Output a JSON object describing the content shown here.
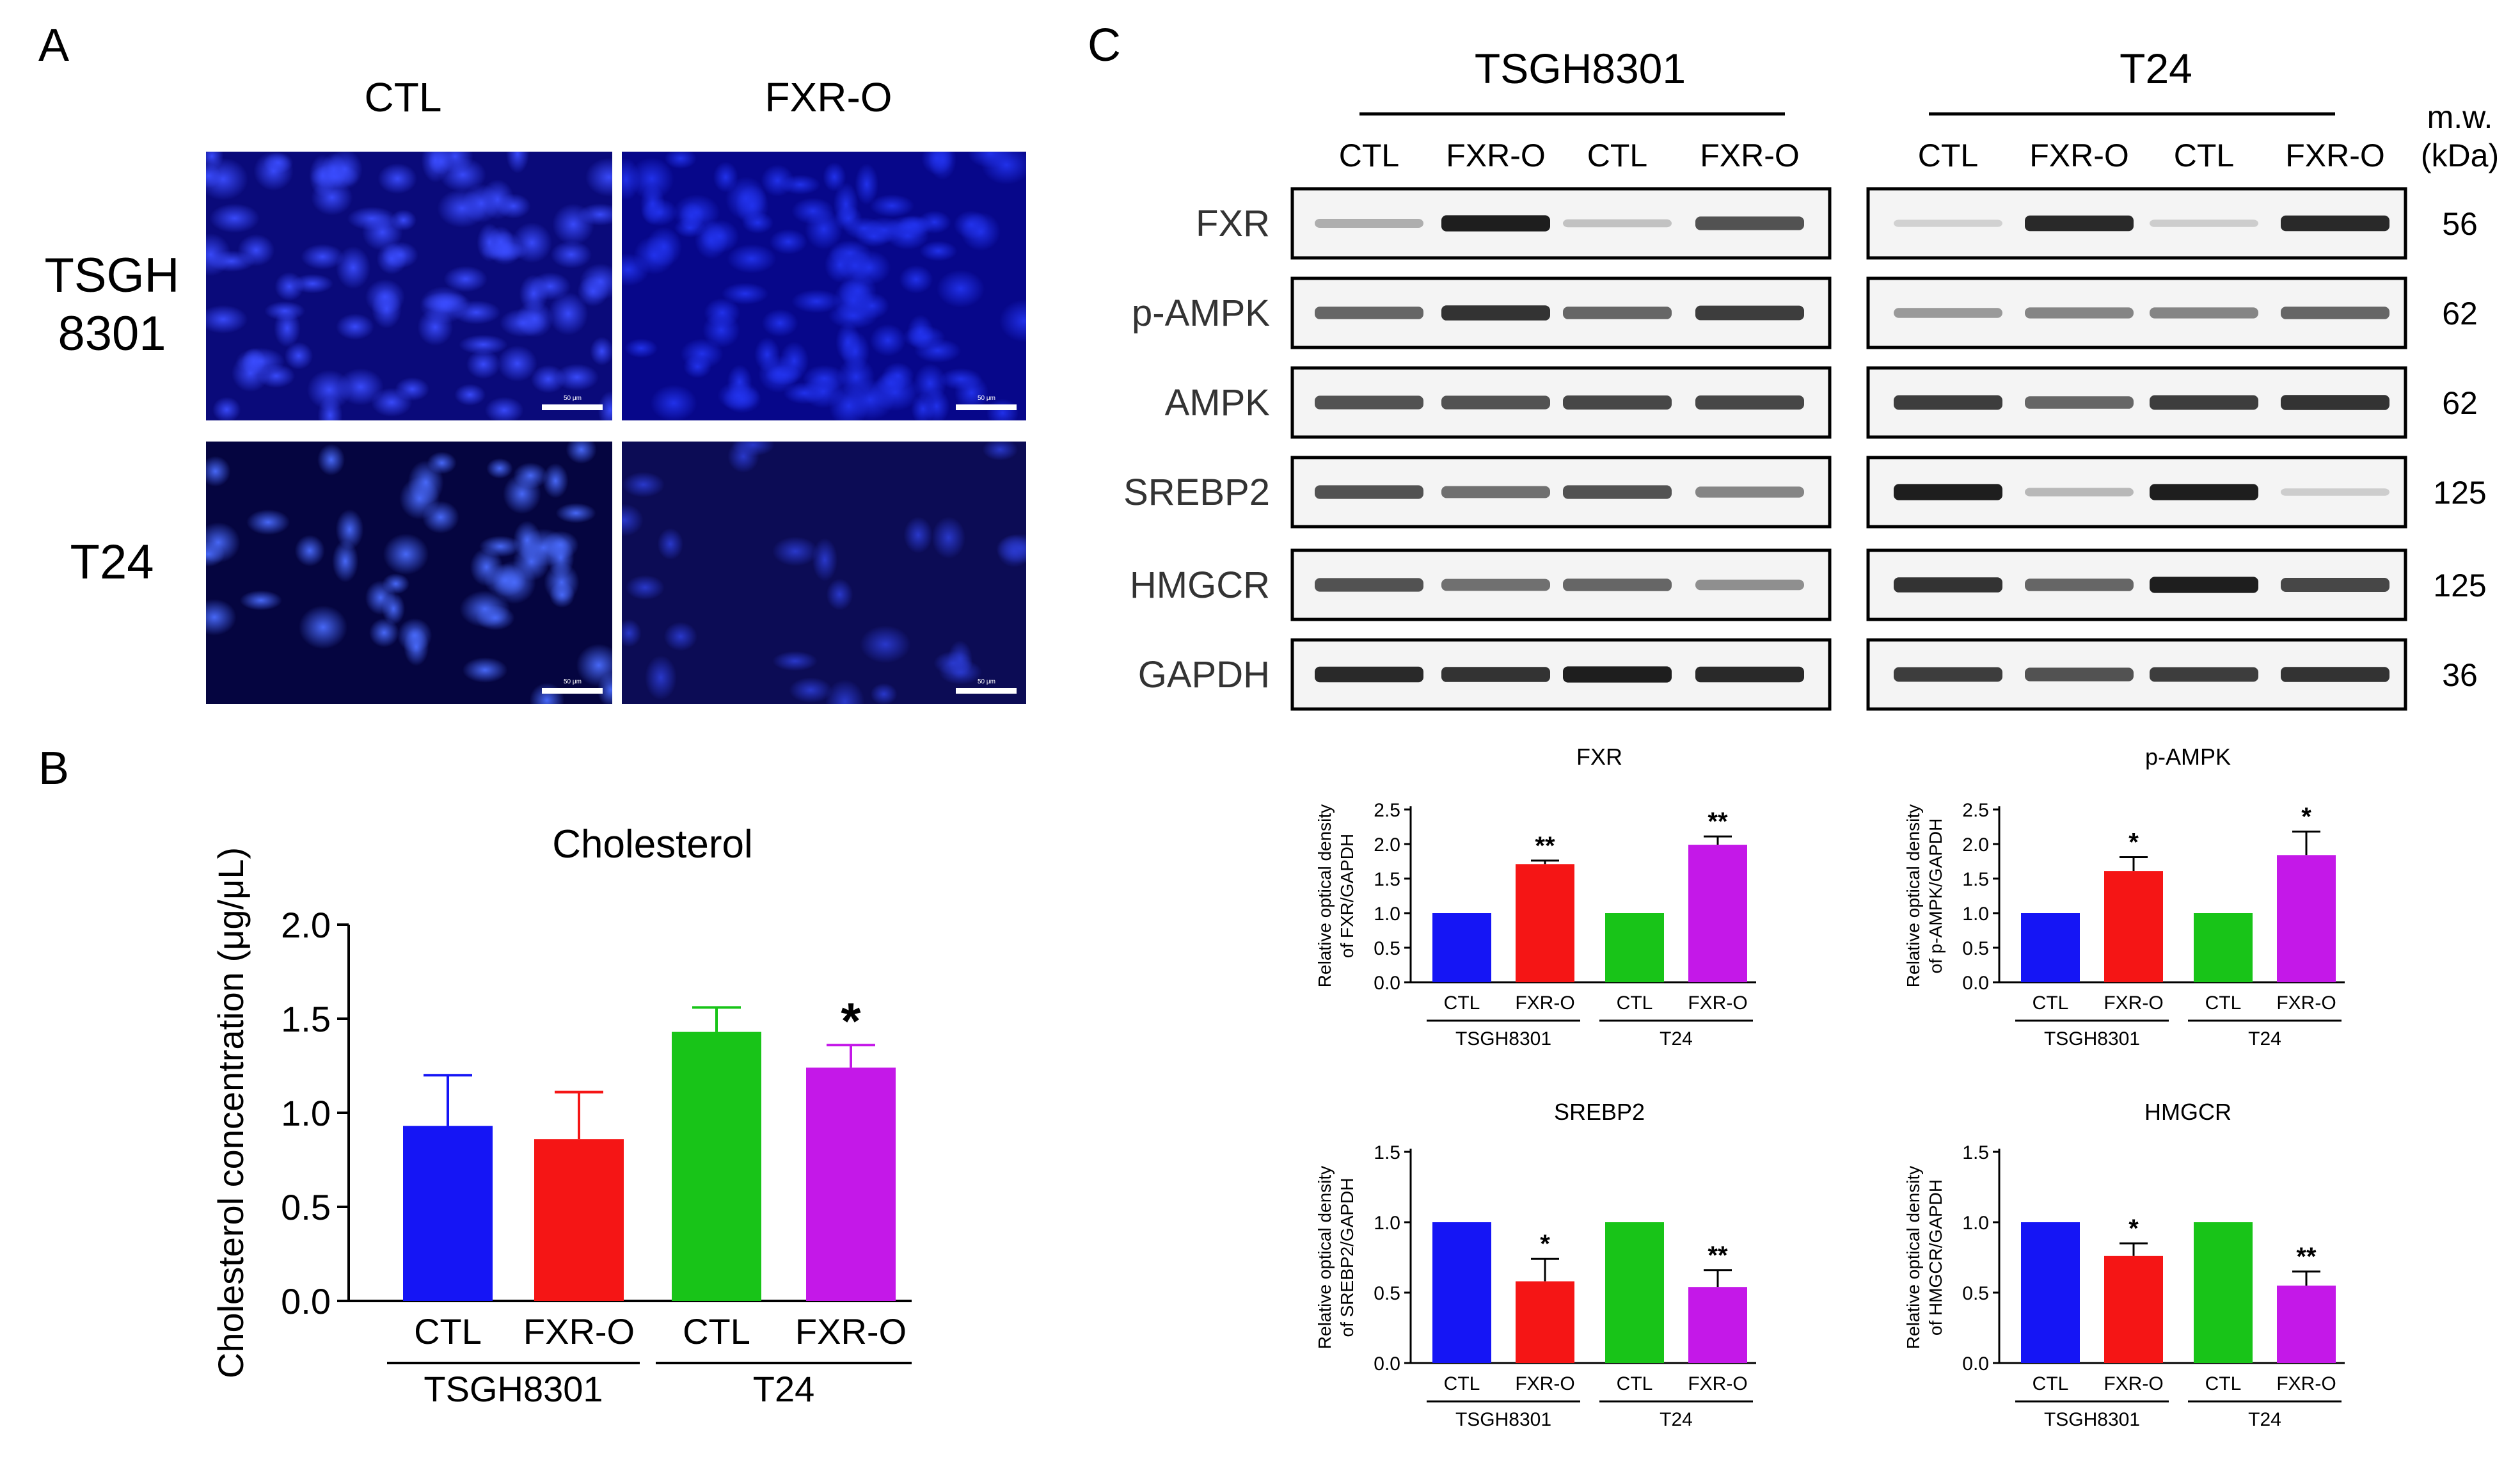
{
  "panels": {
    "A": "A",
    "B": "B",
    "C": "C"
  },
  "panelA": {
    "columns": [
      "CTL",
      "FXR-O"
    ],
    "rows": [
      "TSGH\n8301",
      "T24"
    ],
    "scalebar": "50 μm",
    "images": [
      {
        "row": 0,
        "col": 0,
        "base": "#0a0a7a",
        "glow": "#3a4cff",
        "seed": 11,
        "density": 80
      },
      {
        "row": 0,
        "col": 1,
        "base": "#07078a",
        "glow": "#2233ee",
        "seed": 23,
        "density": 90
      },
      {
        "row": 1,
        "col": 0,
        "base": "#050540",
        "glow": "#4a6cff",
        "seed": 37,
        "density": 45
      },
      {
        "row": 1,
        "col": 1,
        "base": "#0c0c55",
        "glow": "#2a3ad0",
        "seed": 53,
        "density": 25
      }
    ]
  },
  "panelB": {
    "chart_data": {
      "type": "bar",
      "title": "Cholesterol",
      "ylabel": "Cholesterol concentration (μg/μL)",
      "ylim": [
        0,
        2.0
      ],
      "yticks": [
        "0.0",
        "0.5",
        "1.0",
        "1.5",
        "2.0"
      ],
      "categories": [
        "CTL",
        "FXR-O",
        "CTL",
        "FXR-O"
      ],
      "groups": [
        {
          "label": "TSGH8301",
          "span": [
            0,
            1
          ]
        },
        {
          "label": "T24",
          "span": [
            2,
            3
          ]
        }
      ],
      "values": [
        0.93,
        0.86,
        1.43,
        1.24
      ],
      "errors": [
        0.27,
        0.25,
        0.13,
        0.12
      ],
      "colors": [
        "#1515f5",
        "#f51515",
        "#18c418",
        "#c418e8"
      ],
      "significance": [
        "",
        "",
        "",
        "*"
      ]
    }
  },
  "panelC": {
    "cell_lines": [
      "TSGH8301",
      "T24"
    ],
    "lanes": [
      "CTL",
      "FXR-O",
      "CTL",
      "FXR-O"
    ],
    "mw_header": "m.w.\n(kDa)",
    "blots": [
      {
        "protein": "FXR",
        "mw": "56"
      },
      {
        "protein": "p-AMPK",
        "mw": "62"
      },
      {
        "protein": "AMPK",
        "mw": "62"
      },
      {
        "protein": "SREBP2",
        "mw": "125"
      },
      {
        "protein": "HMGCR",
        "mw": "125"
      },
      {
        "protein": "GAPDH",
        "mw": "36"
      }
    ],
    "band_intensity_left": [
      [
        0.25,
        0.95,
        0.15,
        0.7
      ],
      [
        0.6,
        0.85,
        0.6,
        0.8
      ],
      [
        0.7,
        0.7,
        0.75,
        0.75
      ],
      [
        0.7,
        0.55,
        0.7,
        0.45
      ],
      [
        0.7,
        0.55,
        0.6,
        0.4
      ],
      [
        0.9,
        0.85,
        0.95,
        0.9
      ]
    ],
    "band_intensity_right": [
      [
        0.08,
        0.9,
        0.1,
        0.9
      ],
      [
        0.35,
        0.45,
        0.45,
        0.6
      ],
      [
        0.8,
        0.6,
        0.8,
        0.85
      ],
      [
        0.95,
        0.2,
        0.95,
        0.1
      ],
      [
        0.85,
        0.6,
        0.95,
        0.75
      ],
      [
        0.8,
        0.7,
        0.8,
        0.85
      ]
    ],
    "chart_data": [
      {
        "type": "bar",
        "title": "FXR",
        "ylabel": "Relative optical density\nof FXR/GAPDH",
        "ylim": [
          0,
          2.5
        ],
        "yticks": [
          "0.0",
          "0.5",
          "1.0",
          "1.5",
          "2.0",
          "2.5"
        ],
        "categories": [
          "CTL",
          "FXR-O",
          "CTL",
          "FXR-O"
        ],
        "groups": [
          "TSGH8301",
          "T24"
        ],
        "values": [
          1.0,
          1.71,
          1.0,
          1.99
        ],
        "errors": [
          0,
          0.05,
          0,
          0.12
        ],
        "significance": [
          "",
          "**",
          "",
          "**"
        ]
      },
      {
        "type": "bar",
        "title": "p-AMPK",
        "ylabel": "Relative optical density\nof p-AMPK/GAPDH",
        "ylim": [
          0,
          2.5
        ],
        "yticks": [
          "0.0",
          "0.5",
          "1.0",
          "1.5",
          "2.0",
          "2.5"
        ],
        "categories": [
          "CTL",
          "FXR-O",
          "CTL",
          "FXR-O"
        ],
        "groups": [
          "TSGH8301",
          "T24"
        ],
        "values": [
          1.0,
          1.61,
          1.0,
          1.84
        ],
        "errors": [
          0,
          0.2,
          0,
          0.34
        ],
        "significance": [
          "",
          "*",
          "",
          "*"
        ]
      },
      {
        "type": "bar",
        "title": "SREBP2",
        "ylabel": "Relative optical density\nof SREBP2/GAPDH",
        "ylim": [
          0,
          1.5
        ],
        "yticks": [
          "0.0",
          "0.5",
          "1.0",
          "1.5"
        ],
        "categories": [
          "CTL",
          "FXR-O",
          "CTL",
          "FXR-O"
        ],
        "groups": [
          "TSGH8301",
          "T24"
        ],
        "values": [
          1.0,
          0.58,
          1.0,
          0.54
        ],
        "errors": [
          0,
          0.16,
          0,
          0.12
        ],
        "significance": [
          "",
          "*",
          "",
          "**"
        ]
      },
      {
        "type": "bar",
        "title": "HMGCR",
        "ylabel": "Relative optical density\nof HMGCR/GAPDH",
        "ylim": [
          0,
          1.5
        ],
        "yticks": [
          "0.0",
          "0.5",
          "1.0",
          "1.5"
        ],
        "categories": [
          "CTL",
          "FXR-O",
          "CTL",
          "FXR-O"
        ],
        "groups": [
          "TSGH8301",
          "T24"
        ],
        "values": [
          1.0,
          0.76,
          1.0,
          0.55
        ],
        "errors": [
          0,
          0.09,
          0,
          0.1
        ],
        "significance": [
          "",
          "*",
          "",
          "**"
        ]
      }
    ]
  },
  "colors": {
    "ctl": "#1515f5",
    "fxr_tsgh": "#f51515",
    "ctl_t24": "#18c418",
    "fxr_t24": "#c418e8"
  }
}
